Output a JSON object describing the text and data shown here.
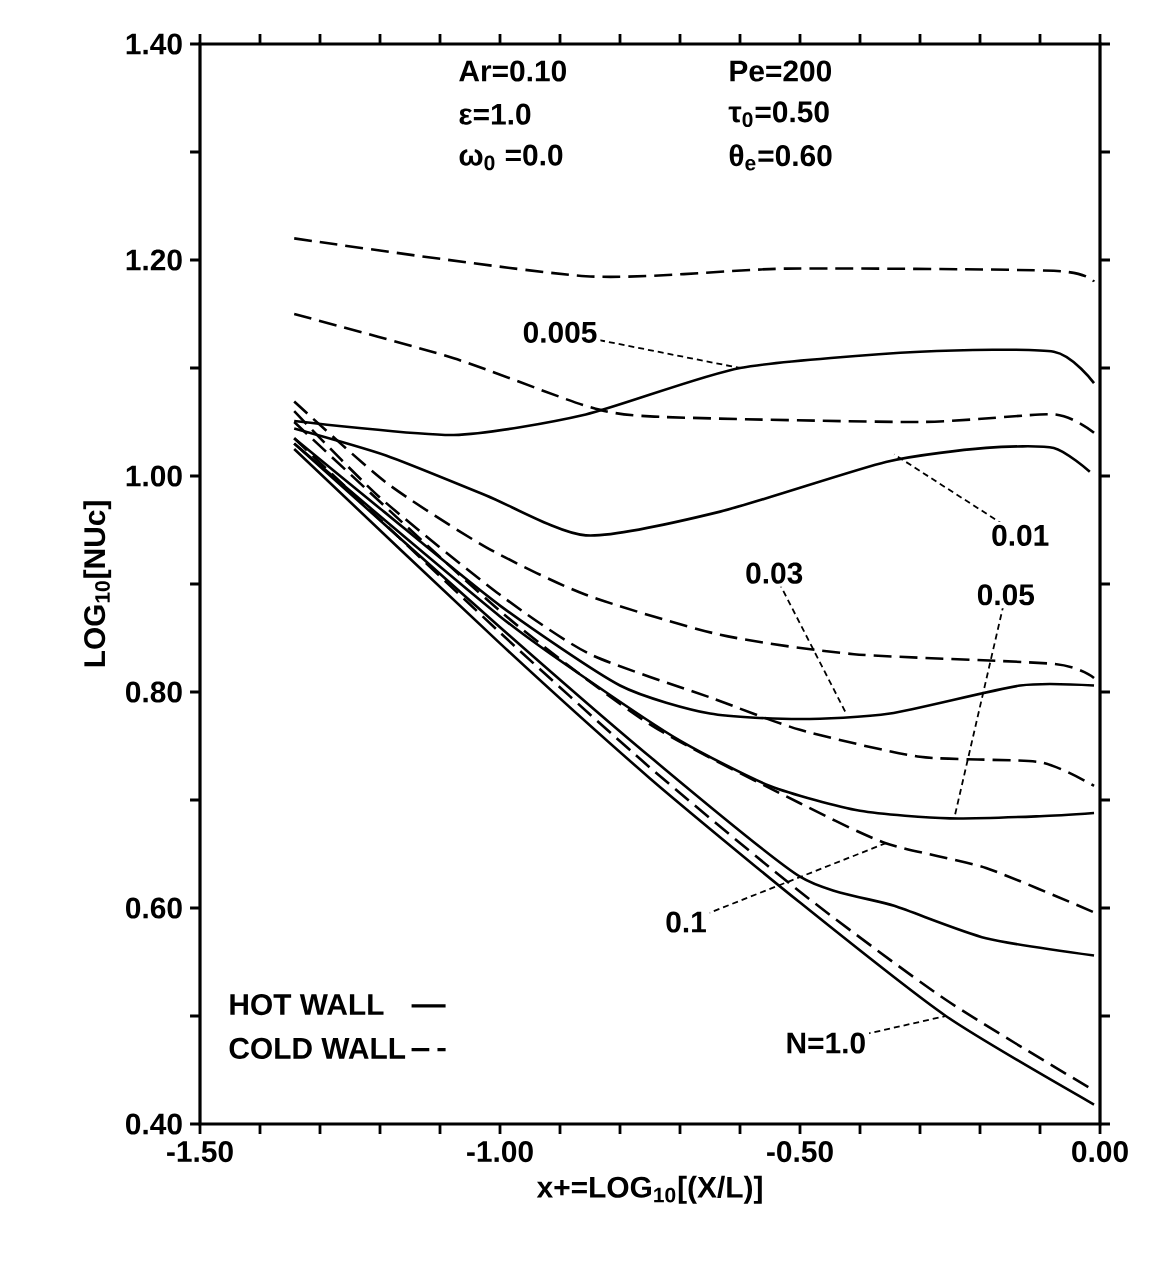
{
  "chart_data": {
    "type": "line",
    "xlabel": "x+=LOG$_{10}$[(X/L)]",
    "ylabel": "LOG$_{10}$[NUc]",
    "xlim": [
      -1.5,
      0.0
    ],
    "ylim": [
      0.4,
      1.4
    ],
    "xticks": [
      {
        "value": -1.5,
        "label": "-1.50"
      },
      {
        "value": -1.4,
        "label": null
      },
      {
        "value": -1.3,
        "label": null
      },
      {
        "value": -1.2,
        "label": null
      },
      {
        "value": -1.1,
        "label": null
      },
      {
        "value": -1.0,
        "label": "-1.00"
      },
      {
        "value": -0.9,
        "label": null
      },
      {
        "value": -0.8,
        "label": null
      },
      {
        "value": -0.7,
        "label": null
      },
      {
        "value": -0.6,
        "label": null
      },
      {
        "value": -0.5,
        "label": "-0.50"
      },
      {
        "value": -0.4,
        "label": null
      },
      {
        "value": -0.3,
        "label": null
      },
      {
        "value": -0.2,
        "label": null
      },
      {
        "value": -0.1,
        "label": null
      },
      {
        "value": 0.0,
        "label": "0.00"
      }
    ],
    "yticks": [
      {
        "value": 0.4,
        "label": "0.40"
      },
      {
        "value": 0.5,
        "label": null
      },
      {
        "value": 0.6,
        "label": "0.60"
      },
      {
        "value": 0.7,
        "label": null
      },
      {
        "value": 0.8,
        "label": "0.80"
      },
      {
        "value": 0.9,
        "label": null
      },
      {
        "value": 1.0,
        "label": "1.00"
      },
      {
        "value": 1.1,
        "label": null
      },
      {
        "value": 1.2,
        "label": "1.20"
      },
      {
        "value": 1.3,
        "label": null
      },
      {
        "value": 1.4,
        "label": "1.40"
      }
    ],
    "legend": "bottom left",
    "series": [
      {
        "name": "HOT WALL",
        "color": "#000000",
        "line_style": "solid",
        "x": [
          -1.343,
          -1.0,
          -0.75,
          -0.5,
          -0.257,
          -0.01
        ],
        "values": [
          1.025,
          0.845,
          0.72,
          0.605,
          0.5,
          0.418
        ]
      },
      {
        "name": "COLD WALL",
        "color": "#000000",
        "line_style": "dashed",
        "x": [
          -1.343,
          -1.0,
          -0.75,
          -0.5,
          -0.257,
          -0.01
        ],
        "values": [
          1.035,
          0.855,
          0.73,
          0.615,
          0.515,
          0.431
        ]
      },
      {
        "color": "#000000",
        "line_style": "solid",
        "x": [
          -1.343,
          -1.077,
          -0.857,
          -0.6,
          -0.3,
          -0.077,
          -0.01
        ],
        "values": [
          1.051,
          1.038,
          1.057,
          1.1,
          1.115,
          1.115,
          1.086
        ]
      },
      {
        "color": "#000000",
        "line_style": "dashed",
        "x": [
          -1.343,
          -0.857,
          -0.523,
          -0.077,
          -0.01
        ],
        "values": [
          1.22,
          1.185,
          1.192,
          1.19,
          1.18
        ]
      },
      {
        "color": "#000000",
        "line_style": "solid",
        "x": [
          -1.343,
          -1.19,
          -1.023,
          -0.857,
          -0.633,
          -0.357,
          -0.19,
          -0.077,
          -0.017
        ],
        "values": [
          1.044,
          1.019,
          0.982,
          0.945,
          0.967,
          1.013,
          1.026,
          1.026,
          1.004
        ]
      },
      {
        "color": "#000000",
        "line_style": "dashed",
        "x": [
          -1.343,
          -1.077,
          -0.857,
          -0.743,
          -0.3,
          -0.077,
          -0.01
        ],
        "values": [
          1.15,
          1.109,
          1.065,
          1.055,
          1.05,
          1.057,
          1.04
        ]
      },
      {
        "color": "#000000",
        "line_style": "solid",
        "x": [
          -1.343,
          -1.2,
          -1.0,
          -0.8,
          -0.65,
          -0.5,
          -0.35,
          -0.133,
          -0.01
        ],
        "values": [
          1.035,
          0.97,
          0.88,
          0.806,
          0.78,
          0.775,
          0.78,
          0.806,
          0.806
        ]
      },
      {
        "color": "#000000",
        "line_style": "dashed",
        "x": [
          -1.343,
          -1.19,
          -1.023,
          -0.857,
          -0.633,
          -0.41,
          -0.077,
          -0.01
        ],
        "values": [
          1.069,
          0.994,
          0.934,
          0.89,
          0.853,
          0.835,
          0.826,
          0.813
        ]
      },
      {
        "color": "#000000",
        "line_style": "solid",
        "x": [
          -1.343,
          -1.0,
          -0.85,
          -0.7,
          -0.55,
          -0.4,
          -0.25,
          -0.1,
          -0.01
        ],
        "values": [
          1.03,
          0.87,
          0.81,
          0.755,
          0.713,
          0.69,
          0.683,
          0.685,
          0.688
        ]
      },
      {
        "color": "#000000",
        "line_style": "dashed",
        "x": [
          -1.343,
          -1.2,
          -1.0,
          -0.85,
          -0.65,
          -0.5,
          -0.3,
          -0.1,
          -0.01
        ],
        "values": [
          1.06,
          0.98,
          0.89,
          0.835,
          0.795,
          0.765,
          0.74,
          0.735,
          0.713
        ]
      },
      {
        "color": "#000000",
        "line_style": "solid",
        "x": [
          -1.343,
          -1.0,
          -0.75,
          -0.5,
          -0.343,
          -0.19,
          -0.01
        ],
        "values": [
          1.03,
          0.86,
          0.74,
          0.629,
          0.602,
          0.572,
          0.556
        ]
      },
      {
        "color": "#000000",
        "line_style": "dashed",
        "x": [
          -1.343,
          -1.0,
          -0.75,
          -0.5,
          -0.357,
          -0.19,
          -0.01
        ],
        "values": [
          1.05,
          0.875,
          0.77,
          0.697,
          0.66,
          0.637,
          0.596
        ]
      }
    ],
    "annotations": [
      "Ar=0.10",
      "ε=1.0",
      "ω$_{0}$ =0.0",
      "Pe=200",
      "τ$_{0}$=0.50",
      "θ$_{e}$=0.60",
      {
        "text": "0.005",
        "x": -0.6,
        "y": 1.1
      },
      {
        "text": "0.01",
        "x": -0.343,
        "y": 1.02
      },
      {
        "text": "0.03",
        "x": -0.423,
        "y": 0.78
      },
      {
        "text": "0.05",
        "x": -0.243,
        "y": 0.683
      },
      {
        "text": "0.1",
        "x": -0.357,
        "y": 0.66
      },
      {
        "text": "N=1.0",
        "x": -0.257,
        "y": 0.5
      }
    ]
  }
}
